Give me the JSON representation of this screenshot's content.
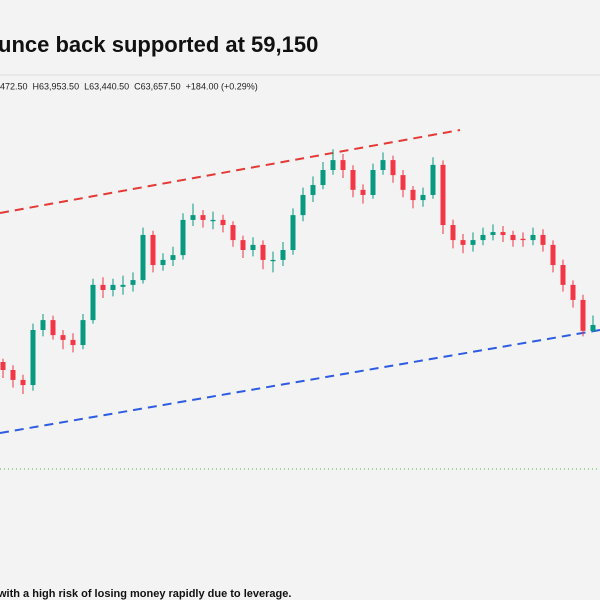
{
  "chart_data": {
    "type": "candlestick",
    "title": "unce back supported at 59,150",
    "legend_items": [
      "472.50",
      "H63,953.50",
      "L63,440.50",
      "C63,657.50",
      "+184.00 (+0.29%)"
    ],
    "up_color": "#089981",
    "down_color": "#f23645",
    "ylim": [
      58500,
      71000
    ],
    "open": [
      62500,
      62250,
      61940,
      61780,
      63500,
      63810,
      63340,
      63190,
      63030,
      63810,
      64910,
      64750,
      64850,
      64910,
      65060,
      66470,
      65530,
      65690,
      65840,
      66940,
      67090,
      66900,
      66940,
      66780,
      66310,
      66000,
      66160,
      65650,
      65690,
      66000,
      67090,
      67720,
      68030,
      68500,
      68810,
      68500,
      67880,
      67720,
      68500,
      68810,
      68340,
      67880,
      67560,
      67720,
      68660,
      66780,
      66310,
      66160,
      66310,
      66470,
      66560,
      66470,
      66350,
      66310,
      66470,
      66160,
      65530,
      64910,
      64440,
      63472.5
    ],
    "high": [
      62600,
      62400,
      62100,
      63700,
      64000,
      63950,
      63500,
      63400,
      64000,
      65100,
      65150,
      65100,
      65200,
      65300,
      66700,
      66600,
      65900,
      66100,
      67150,
      67450,
      67250,
      67200,
      67100,
      66900,
      66450,
      66400,
      66300,
      65950,
      66250,
      67300,
      67950,
      68300,
      68750,
      69150,
      69000,
      68650,
      68050,
      68700,
      69050,
      68950,
      68500,
      68000,
      67950,
      68900,
      68800,
      66950,
      66500,
      66550,
      66700,
      66800,
      66750,
      66600,
      66550,
      66700,
      66650,
      66300,
      65700,
      65050,
      64600,
      63953.5
    ],
    "low": [
      62000,
      61700,
      61500,
      61600,
      63300,
      63200,
      62900,
      62800,
      62900,
      63700,
      64500,
      64550,
      64600,
      64700,
      64950,
      65300,
      65350,
      65500,
      65700,
      66750,
      66700,
      66650,
      66550,
      66100,
      65750,
      65800,
      65400,
      65300,
      65500,
      65850,
      66900,
      67500,
      67900,
      68350,
      68250,
      67650,
      67450,
      67600,
      68350,
      68100,
      67650,
      67300,
      67350,
      67600,
      66500,
      66050,
      65900,
      65950,
      66150,
      66300,
      66250,
      66100,
      66100,
      66150,
      65950,
      65300,
      64700,
      64200,
      63300,
      63440.5
    ],
    "close": [
      62250,
      61940,
      61780,
      63500,
      63810,
      63340,
      63190,
      63030,
      63810,
      64910,
      64750,
      64910,
      64910,
      65060,
      66470,
      65530,
      65690,
      65840,
      66940,
      67090,
      66940,
      66940,
      66780,
      66310,
      66000,
      66160,
      65690,
      65690,
      66000,
      67090,
      67720,
      68030,
      68500,
      68810,
      68500,
      67880,
      67720,
      68500,
      68810,
      68340,
      67880,
      67560,
      67720,
      68660,
      66780,
      66310,
      66160,
      66310,
      66470,
      66560,
      66470,
      66310,
      66310,
      66470,
      66160,
      65530,
      64910,
      64440,
      63473.5,
      63657.5
    ]
  },
  "footer": {
    "text": "with a high risk of losing money rapidly due to leverage."
  }
}
